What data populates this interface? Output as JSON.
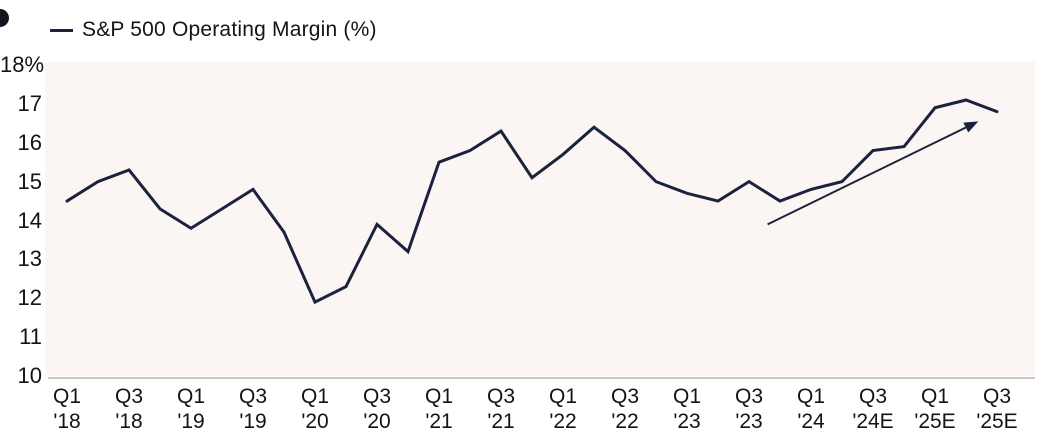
{
  "legend": {
    "label": "S&P 500 Operating Margin (%)"
  },
  "colors": {
    "line": "#1b223b",
    "arrow": "#1b223b",
    "text": "#141414",
    "plot_background": "#fbf6f4",
    "axis_line": "#a9a5a3",
    "page_background": "#ffffff"
  },
  "chart_data": {
    "type": "line",
    "title": "S&P 500 Operating Margin (%)",
    "series_name": "S&P 500 Operating Margin (%)",
    "x": [
      "Q1 '18",
      "Q2 '18",
      "Q3 '18",
      "Q4 '18",
      "Q1 '19",
      "Q2 '19",
      "Q3 '19",
      "Q4 '19",
      "Q1 '20",
      "Q2 '20",
      "Q3 '20",
      "Q4 '20",
      "Q1 '21",
      "Q2 '21",
      "Q3 '21",
      "Q4 '21",
      "Q1 '22",
      "Q2 '22",
      "Q3 '22",
      "Q4 '22",
      "Q1 '23",
      "Q2 '23",
      "Q3 '23",
      "Q4 '23",
      "Q1 '24",
      "Q2 '24",
      "Q3 '24E",
      "Q4 '24E",
      "Q1 '25E",
      "Q2 '25E",
      "Q3 '25E"
    ],
    "values": [
      14.5,
      15.0,
      15.3,
      14.3,
      13.8,
      14.3,
      14.8,
      13.7,
      11.9,
      12.3,
      13.9,
      13.2,
      15.5,
      15.8,
      16.3,
      15.1,
      15.7,
      16.4,
      15.8,
      15.0,
      14.7,
      14.5,
      15.0,
      14.5,
      14.8,
      15.0,
      15.8,
      15.9,
      16.9,
      17.1,
      16.8
    ],
    "x_tick_labels": [
      "Q1 '18",
      "Q3 '18",
      "Q1 '19",
      "Q3 '19",
      "Q1 '20",
      "Q3 '20",
      "Q1 '21",
      "Q3 '21",
      "Q1 '22",
      "Q3 '22",
      "Q1 '23",
      "Q3 '23",
      "Q1 '24",
      "Q3 '24E",
      "Q1 '25E",
      "Q3 '25E"
    ],
    "y_ticks": [
      {
        "label": "18%",
        "value": 18
      },
      {
        "label": "17",
        "value": 17
      },
      {
        "label": "16",
        "value": 16
      },
      {
        "label": "15",
        "value": 15
      },
      {
        "label": "14",
        "value": 14
      },
      {
        "label": "13",
        "value": 13
      },
      {
        "label": "12",
        "value": 12
      },
      {
        "label": "11",
        "value": 11
      },
      {
        "label": "10",
        "value": 10
      }
    ],
    "ylim": [
      10,
      18
    ],
    "grid": false,
    "legend_position": "top-left",
    "annotation_arrow": {
      "from_index": 22.6,
      "from_value": 13.9,
      "to_index": 29.4,
      "to_value": 16.55
    }
  }
}
